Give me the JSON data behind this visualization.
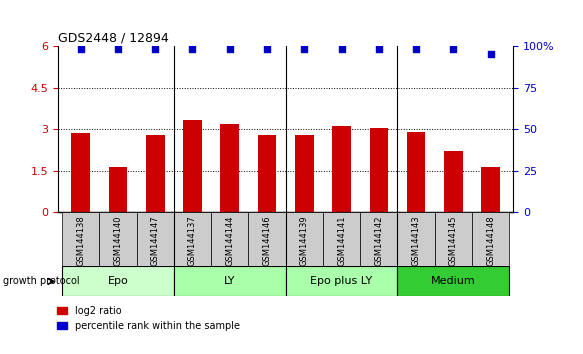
{
  "title": "GDS2448 / 12894",
  "samples": [
    "GSM144138",
    "GSM144140",
    "GSM144147",
    "GSM144137",
    "GSM144144",
    "GSM144146",
    "GSM144139",
    "GSM144141",
    "GSM144142",
    "GSM144143",
    "GSM144145",
    "GSM144148"
  ],
  "log2_ratio": [
    2.85,
    1.65,
    2.8,
    3.35,
    3.2,
    2.8,
    2.8,
    3.1,
    3.05,
    2.9,
    2.2,
    1.65
  ],
  "percentile_rank": [
    98,
    98,
    98,
    98,
    98,
    98,
    98,
    98,
    98,
    98,
    98,
    95
  ],
  "bar_color": "#cc0000",
  "dot_color": "#0000cc",
  "y_left_ticks": [
    0,
    1.5,
    3.0,
    4.5,
    6.0
  ],
  "y_left_labels": [
    "0",
    "1.5",
    "3",
    "4.5",
    "6"
  ],
  "y_right_ticks": [
    0,
    25,
    50,
    75,
    100
  ],
  "y_right_labels": [
    "0",
    "25",
    "50",
    "75",
    "100%"
  ],
  "xlabel_area_color": "#cccccc",
  "group_defs": [
    [
      0,
      3,
      "Epo",
      "#ccffcc"
    ],
    [
      3,
      6,
      "LY",
      "#aaffaa"
    ],
    [
      6,
      9,
      "Epo plus LY",
      "#aaffaa"
    ],
    [
      9,
      12,
      "Medium",
      "#33cc33"
    ]
  ],
  "legend_red_label": "log2 ratio",
  "legend_blue_label": "percentile rank within the sample",
  "growth_protocol_label": "growth protocol"
}
